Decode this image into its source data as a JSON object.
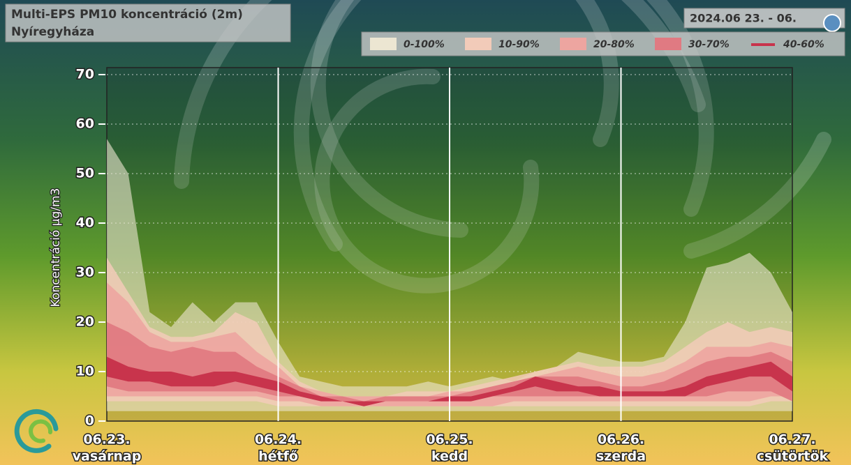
{
  "chart_data": {
    "type": "band",
    "title": "Multi-EPS PM10 koncentráció (2m)",
    "subtitle": "Nyíregyháza",
    "date_range": "2024.06 23. - 06.",
    "y_label": "Koncentráció µg/m3",
    "xlim": [
      0,
      96
    ],
    "xticks": [
      {
        "value": 0,
        "label": "06.23."
      },
      {
        "value": 24,
        "label": "06.24."
      },
      {
        "value": 48,
        "label": "06.25."
      },
      {
        "value": 72,
        "label": "06.26."
      },
      {
        "value": 96,
        "label": "06.27."
      }
    ],
    "weekdays": [
      "vasárnap",
      "hétfő",
      "kedd",
      "szerda",
      "csütörtök"
    ],
    "ylim": [
      0,
      70
    ],
    "yticks": [
      0,
      10,
      20,
      30,
      40,
      50,
      60,
      70
    ],
    "grid": true,
    "x": [
      0,
      3,
      6,
      9,
      12,
      15,
      18,
      21,
      24,
      27,
      30,
      33,
      36,
      39,
      42,
      45,
      48,
      51,
      54,
      57,
      60,
      63,
      66,
      69,
      72,
      75,
      78,
      81,
      84,
      87,
      90,
      93,
      96
    ],
    "series": [
      {
        "name": "0-100%",
        "color": "#ece6d2",
        "low": [
          2,
          2,
          2,
          2,
          2,
          2,
          2,
          2,
          2,
          2,
          2,
          2,
          2,
          2,
          2,
          2,
          2,
          2,
          2,
          2,
          2,
          2,
          2,
          2,
          2,
          2,
          2,
          2,
          2,
          2,
          2,
          2,
          2
        ],
        "high": [
          57,
          50,
          22,
          19,
          24,
          20,
          24,
          24,
          16,
          9,
          8,
          7,
          7,
          7,
          7,
          8,
          7,
          8,
          9,
          8,
          10,
          11,
          14,
          13,
          12,
          12,
          13,
          20,
          31,
          32,
          34,
          30,
          22
        ]
      },
      {
        "name": "10-90%",
        "color": "#f2cbb9",
        "low": [
          4,
          4,
          4,
          4,
          4,
          4,
          4,
          4,
          3,
          3,
          3,
          3,
          3,
          3,
          3,
          3,
          3,
          3,
          3,
          3,
          3,
          3,
          3,
          3,
          3,
          3,
          3,
          3,
          3,
          3,
          3,
          4,
          4
        ],
        "high": [
          33,
          26,
          19,
          17,
          17,
          18,
          22,
          20,
          12,
          8,
          6,
          5,
          5,
          5,
          6,
          6,
          6,
          7,
          8,
          9,
          10,
          11,
          12,
          11,
          11,
          11,
          12,
          15,
          18,
          20,
          18,
          19,
          18
        ]
      },
      {
        "name": "20-80%",
        "color": "#eda5a0",
        "low": [
          5,
          5,
          5,
          5,
          5,
          5,
          5,
          5,
          4,
          4,
          3,
          3,
          3,
          3,
          3,
          3,
          3,
          3,
          3,
          4,
          4,
          4,
          4,
          4,
          4,
          4,
          4,
          4,
          4,
          4,
          4,
          5,
          5
        ],
        "high": [
          28,
          24,
          18,
          16,
          16,
          17,
          18,
          14,
          11,
          7,
          6,
          5,
          5,
          5,
          5,
          5,
          6,
          6,
          7,
          8,
          9,
          10,
          11,
          10,
          9,
          9,
          10,
          12,
          15,
          15,
          15,
          16,
          15
        ]
      },
      {
        "name": "30-70%",
        "color": "#e07a82",
        "low": [
          7,
          6,
          6,
          6,
          6,
          6,
          6,
          6,
          5,
          5,
          4,
          4,
          3,
          4,
          4,
          4,
          4,
          4,
          5,
          5,
          5,
          5,
          5,
          5,
          5,
          5,
          5,
          5,
          5,
          6,
          6,
          6,
          4
        ],
        "high": [
          20,
          18,
          15,
          14,
          15,
          14,
          14,
          11,
          9,
          7,
          5,
          5,
          4,
          5,
          5,
          5,
          5,
          6,
          7,
          8,
          9,
          9,
          9,
          8,
          7,
          7,
          8,
          10,
          12,
          13,
          13,
          14,
          12
        ]
      },
      {
        "name": "40-60%",
        "color": "#c8344c",
        "low": [
          9,
          8,
          8,
          7,
          7,
          7,
          8,
          7,
          6,
          5,
          4,
          4,
          3,
          4,
          4,
          4,
          4,
          4,
          5,
          6,
          7,
          6,
          6,
          5,
          5,
          5,
          5,
          5,
          7,
          8,
          9,
          9,
          6
        ],
        "high": [
          13,
          11,
          10,
          10,
          9,
          10,
          10,
          9,
          8,
          6,
          5,
          4,
          4,
          4,
          4,
          4,
          5,
          5,
          6,
          7,
          9,
          8,
          7,
          7,
          6,
          6,
          6,
          7,
          9,
          10,
          11,
          12,
          9
        ]
      }
    ]
  }
}
